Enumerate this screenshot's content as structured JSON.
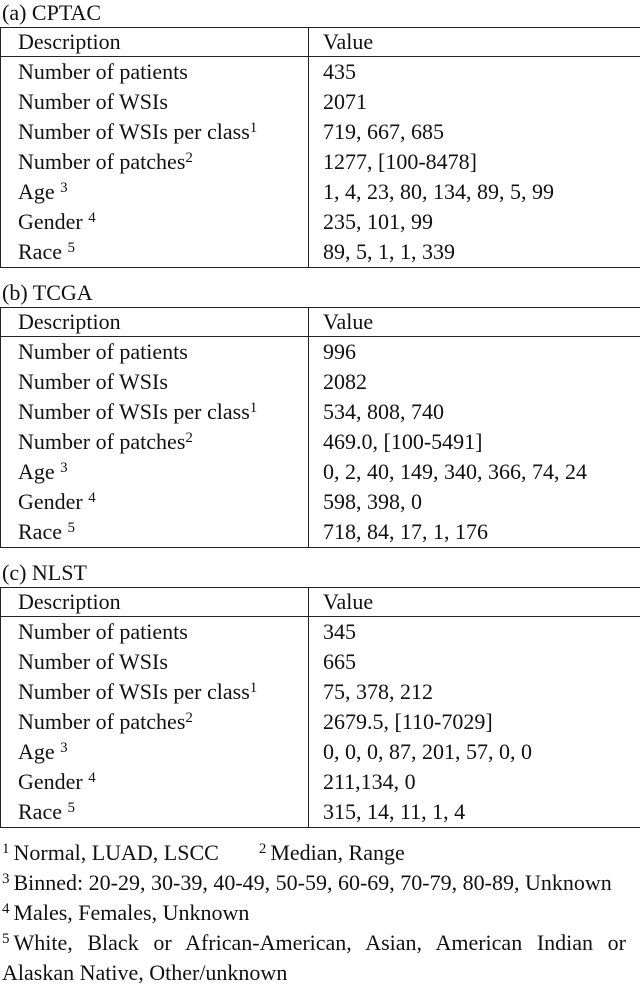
{
  "tables": [
    {
      "caption": "(a) CPTAC",
      "header": [
        "Description",
        "Value"
      ],
      "rows": [
        {
          "label": "Number of patients",
          "value": "435"
        },
        {
          "label": "Number of WSIs",
          "value": "2071"
        },
        {
          "label": "Number of WSIs per class",
          "sup": "1",
          "value": "719, 667, 685"
        },
        {
          "label": "Number of patches",
          "sup": "2",
          "value": "1277, [100-8478]"
        },
        {
          "label": "Age ",
          "sup": "3",
          "value": "1, 4, 23, 80, 134, 89, 5, 99"
        },
        {
          "label": "Gender ",
          "sup": "4",
          "value": "235, 101, 99"
        },
        {
          "label": "Race ",
          "sup": "5",
          "value": "89, 5, 1, 1, 339"
        }
      ]
    },
    {
      "caption": "(b) TCGA",
      "header": [
        "Description",
        "Value"
      ],
      "rows": [
        {
          "label": "Number of patients",
          "value": "996"
        },
        {
          "label": "Number of WSIs",
          "value": "2082"
        },
        {
          "label": "Number of WSIs per class",
          "sup": "1",
          "value": "534, 808, 740"
        },
        {
          "label": "Number of patches",
          "sup": "2",
          "value": "469.0, [100-5491]"
        },
        {
          "label": "Age ",
          "sup": "3",
          "value": "0, 2, 40, 149, 340, 366, 74, 24"
        },
        {
          "label": "Gender ",
          "sup": "4",
          "value": "598, 398, 0"
        },
        {
          "label": "Race ",
          "sup": "5",
          "value": "718, 84, 17, 1, 176"
        }
      ]
    },
    {
      "caption": "(c) NLST",
      "header": [
        "Description",
        "Value"
      ],
      "rows": [
        {
          "label": "Number of patients",
          "value": "345"
        },
        {
          "label": "Number of WSIs",
          "value": "665"
        },
        {
          "label": "Number of WSIs per class",
          "sup": "1",
          "value": "75, 378, 212"
        },
        {
          "label": "Number of patches",
          "sup": "2",
          "value": "2679.5, [110-7029]"
        },
        {
          "label": "Age ",
          "sup": "3",
          "value": "0, 0, 0, 87, 201, 57, 0, 0"
        },
        {
          "label": "Gender ",
          "sup": "4",
          "value": "211,134, 0"
        },
        {
          "label": "Race ",
          "sup": "5",
          "value": "315, 14, 11, 1, 4"
        }
      ]
    }
  ],
  "footnotes": [
    {
      "mark": "1",
      "text": "Normal, LUAD, LSCC"
    },
    {
      "mark": "2",
      "text": "Median, Range"
    },
    {
      "mark": "3",
      "text": "Binned:  20-29,  30-39,  40-49,  50-59,  60-69,  70-79,  80-89, Unknown"
    },
    {
      "mark": "4",
      "text": "Males, Females, Unknown"
    },
    {
      "mark": "5",
      "text": "White, Black or African-American, Asian, American Indian or Alaskan Native, Other/unknown"
    }
  ]
}
